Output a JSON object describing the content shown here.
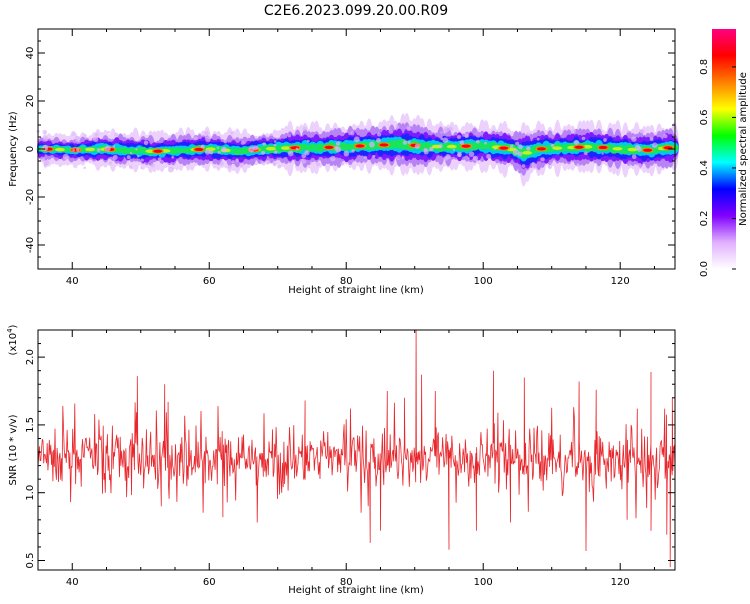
{
  "figure_title": "C2E6.2023.099.20.00.R09",
  "chart_data": [
    {
      "type": "heatmap",
      "xlabel": "Height of straight line (km)",
      "ylabel": "Frequency (Hz)",
      "xlim": [
        35,
        128
      ],
      "ylim": [
        -50,
        50
      ],
      "xticks": [
        40,
        60,
        80,
        100,
        120
      ],
      "xtick_labels": [
        "40",
        "60",
        "80",
        "100",
        "120"
      ],
      "yticks": [
        -40,
        -20,
        0,
        20,
        40
      ],
      "ytick_labels": [
        "-40",
        "-20",
        "0",
        "20",
        "40"
      ],
      "colorbar": {
        "label": "Normalized spectral amplitude",
        "range": [
          0,
          0.95
        ],
        "ticks": [
          0.0,
          0.2,
          0.4,
          0.6,
          0.8
        ],
        "tick_labels": [
          "0.0",
          "0.2",
          "0.4",
          "0.6",
          "0.8"
        ],
        "colors": [
          "#ffffff",
          "#e0b0ff",
          "#8000ff",
          "#0000ff",
          "#00ffff",
          "#00ff00",
          "#ffff00",
          "#ff8000",
          "#ff0000",
          "#ff0080"
        ]
      },
      "ridge": {
        "x": [
          36,
          40,
          44,
          48,
          52,
          56,
          60,
          64,
          68,
          72,
          76,
          80,
          84,
          88,
          92,
          96,
          100,
          104,
          106,
          108,
          112,
          116,
          120,
          124,
          127
        ],
        "center_freq": [
          0,
          -0.5,
          0,
          -0.5,
          -1,
          -0.5,
          0,
          -1,
          0,
          0.5,
          0.5,
          1,
          1.5,
          2,
          1,
          1,
          1.5,
          0,
          -2,
          0,
          0.5,
          1,
          0,
          -0.5,
          0.5
        ],
        "half_width": [
          3,
          3,
          4,
          4,
          4,
          4,
          4,
          4,
          4,
          5,
          5,
          5,
          5,
          6,
          5,
          5,
          5,
          5,
          6,
          5,
          5,
          5,
          5,
          5,
          5
        ],
        "peaks_x": [
          36.5,
          40.5,
          45.5,
          52.5,
          58.5,
          66.5,
          72.5,
          77.5,
          82,
          85.5,
          90,
          97.5,
          103,
          108.5,
          114,
          117.5,
          124,
          127
        ]
      },
      "grid": false
    },
    {
      "type": "line",
      "xlabel": "Height of straight line (km)",
      "ylabel": "SNR (10 * v/v)",
      "y_multiplier": "(x10",
      "y_multiplier_exp": "4",
      "y_multiplier_close": ")",
      "xlim": [
        35,
        128
      ],
      "ylim": [
        0.43,
        2.2
      ],
      "xticks": [
        40,
        60,
        80,
        100,
        120
      ],
      "xtick_labels": [
        "40",
        "60",
        "80",
        "100",
        "120"
      ],
      "yticks": [
        0.5,
        1.0,
        1.5,
        2.0
      ],
      "ytick_labels": [
        "0.5",
        "1.0",
        "1.5",
        "2.0"
      ],
      "series": [
        {
          "color": "#e8262b",
          "base": [
            [
              35,
              1.25
            ],
            [
              50,
              1.25
            ],
            [
              60,
              1.24
            ],
            [
              70,
              1.24
            ],
            [
              80,
              1.25
            ],
            [
              90,
              1.26
            ],
            [
              100,
              1.25
            ],
            [
              110,
              1.24
            ],
            [
              120,
              1.22
            ],
            [
              128,
              1.25
            ]
          ],
          "amplitude": 0.12,
          "spikes": [
            [
              49.5,
              1.86
            ],
            [
              53.5,
              1.8
            ],
            [
              54,
              1.67
            ],
            [
              74,
              1.68
            ],
            [
              86,
              1.75
            ],
            [
              88.5,
              1.7
            ],
            [
              90.2,
              2.2
            ],
            [
              91,
              1.87
            ],
            [
              93,
              1.75
            ],
            [
              101.5,
              1.9
            ],
            [
              106,
              1.85
            ],
            [
              114,
              1.82
            ],
            [
              116.5,
              1.76
            ],
            [
              122.5,
              1.62
            ],
            [
              124.5,
              1.89
            ],
            [
              126.5,
              1.62
            ],
            [
              53,
              0.9
            ],
            [
              62,
              0.82
            ],
            [
              67,
              0.78
            ],
            [
              83.5,
              0.63
            ],
            [
              85,
              0.72
            ],
            [
              95,
              0.58
            ],
            [
              99,
              0.72
            ],
            [
              104,
              0.78
            ],
            [
              115,
              0.57
            ],
            [
              121,
              0.8
            ],
            [
              124.5,
              0.72
            ],
            [
              126.8,
              0.69
            ],
            [
              127.3,
              0.45
            ],
            [
              127.6,
              1.7
            ]
          ],
          "n_points": 900,
          "seed": 7
        }
      ],
      "grid": false
    }
  ]
}
